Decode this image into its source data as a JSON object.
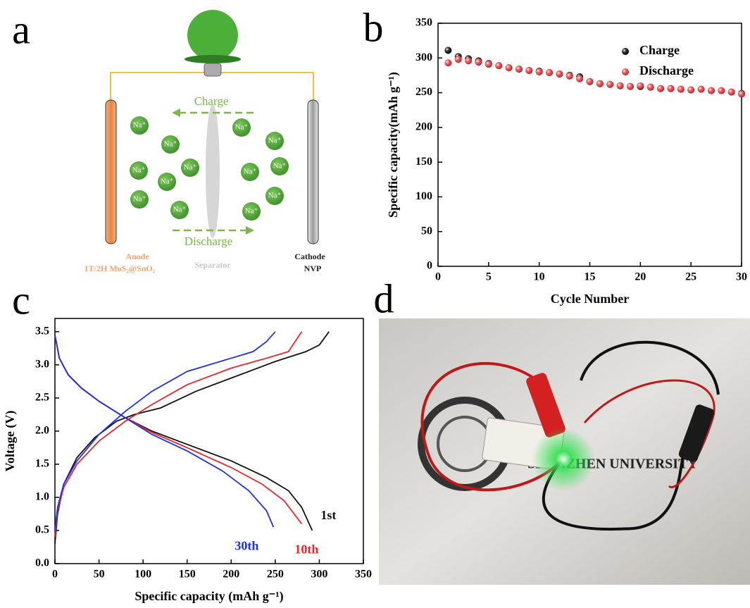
{
  "panel_labels": [
    "a",
    "b",
    "c",
    "d"
  ],
  "diagram": {
    "charge_label": "Charge",
    "discharge_label": "Discharge",
    "anode": [
      "Anode",
      "1T/2H MoS₂@SnO₂"
    ],
    "separator": "Separator",
    "cathode": [
      "Cathode",
      "NVP"
    ],
    "ions": [
      "Na⁺",
      "Na⁺",
      "Na⁺",
      "Na⁺",
      "Na⁺",
      "Na⁺",
      "Na⁺",
      "Na⁺",
      "Na⁺",
      "Na⁺",
      "Na⁺",
      "Na⁺",
      "Na⁺"
    ]
  },
  "photo": {
    "texts": [
      "SHENZHEN UNIVERSITY"
    ]
  },
  "chart_data": [
    {
      "type": "scatter",
      "xlabel": "Cycle Number",
      "ylabel": "Specific capacity(mAh g⁻¹)",
      "x": [
        1,
        2,
        3,
        4,
        5,
        6,
        7,
        8,
        9,
        10,
        11,
        12,
        13,
        14,
        15,
        16,
        17,
        18,
        19,
        20,
        21,
        22,
        23,
        24,
        25,
        26,
        27,
        28,
        29,
        30
      ],
      "series": [
        {
          "name": "Charge",
          "color": "#111111",
          "values": [
            311,
            302,
            299,
            296,
            292,
            289,
            286,
            284,
            282,
            281,
            279,
            277,
            275,
            273,
            266,
            263,
            262,
            260,
            259,
            259,
            258,
            256,
            256,
            255,
            254,
            255,
            253,
            253,
            251,
            249
          ]
        },
        {
          "name": "Discharge",
          "color": "#e8463f",
          "values": [
            293,
            298,
            296,
            294,
            291,
            289,
            286,
            284,
            282,
            280,
            279,
            277,
            274,
            270,
            266,
            263,
            262,
            260,
            259,
            260,
            258,
            256,
            256,
            255,
            254,
            255,
            253,
            253,
            251,
            248
          ]
        }
      ],
      "xlim": [
        0,
        30
      ],
      "ylim": [
        0,
        350
      ],
      "xticks": [
        0,
        5,
        10,
        15,
        20,
        25,
        30
      ],
      "yticks": [
        0,
        50,
        100,
        150,
        200,
        250,
        300,
        350
      ],
      "legend": "upper right"
    },
    {
      "type": "line",
      "xlabel": "Specific capacity (mAh g⁻¹)",
      "ylabel": "Voltage (V)",
      "series": [
        {
          "name": "1st",
          "color": "#111111",
          "discharge": {
            "x": [
              0,
              5,
              15,
              30,
              50,
              80,
              110,
              150,
              200,
              240,
              265,
              280,
              292
            ],
            "values": [
              3.45,
              3.1,
              2.85,
              2.65,
              2.45,
              2.2,
              2.0,
              1.8,
              1.55,
              1.3,
              1.1,
              0.85,
              0.5
            ]
          },
          "charge": {
            "x": [
              0,
              3,
              10,
              25,
              45,
              70,
              90,
              120,
              160,
              200,
              250,
              285,
              300,
              311
            ],
            "values": [
              0.3,
              0.75,
              1.2,
              1.6,
              1.9,
              2.15,
              2.25,
              2.35,
              2.6,
              2.8,
              3.05,
              3.2,
              3.3,
              3.5
            ]
          }
        },
        {
          "name": "10th",
          "color": "#e8262b",
          "discharge": {
            "x": [
              0,
              5,
              15,
              30,
              50,
              80,
              110,
              150,
              200,
              235,
              260,
              280
            ],
            "values": [
              3.45,
              3.1,
              2.85,
              2.65,
              2.45,
              2.2,
              1.98,
              1.75,
              1.45,
              1.2,
              0.95,
              0.6
            ]
          },
          "charge": {
            "x": [
              0,
              3,
              10,
              25,
              50,
              80,
              110,
              150,
              200,
              240,
              265,
              280
            ],
            "values": [
              0.4,
              0.8,
              1.15,
              1.5,
              1.85,
              2.15,
              2.4,
              2.7,
              2.95,
              3.1,
              3.2,
              3.5
            ]
          }
        },
        {
          "name": "30th",
          "color": "#1f2ee8",
          "discharge": {
            "x": [
              0,
              5,
              15,
              30,
              50,
              80,
              110,
              150,
              190,
              220,
              240,
              248
            ],
            "values": [
              3.45,
              3.1,
              2.85,
              2.65,
              2.45,
              2.2,
              1.95,
              1.7,
              1.4,
              1.1,
              0.8,
              0.55
            ]
          },
          "charge": {
            "x": [
              0,
              3,
              10,
              25,
              50,
              80,
              110,
              150,
              200,
              225,
              240,
              250
            ],
            "values": [
              0.5,
              0.85,
              1.2,
              1.55,
              1.95,
              2.3,
              2.6,
              2.9,
              3.1,
              3.2,
              3.35,
              3.5
            ]
          }
        }
      ],
      "xlim": [
        0,
        350
      ],
      "ylim": [
        0,
        3.7
      ],
      "xticks": [
        0,
        50,
        100,
        150,
        200,
        250,
        300,
        350
      ],
      "yticks": [
        {
          "value": 0,
          "label": "0.0"
        },
        0.5,
        {
          "value": 1,
          "label": "1.0"
        },
        1.5,
        {
          "value": 2,
          "label": "2.0"
        },
        2.5,
        {
          "value": 3,
          "label": "3.0"
        },
        3.5
      ]
    }
  ]
}
